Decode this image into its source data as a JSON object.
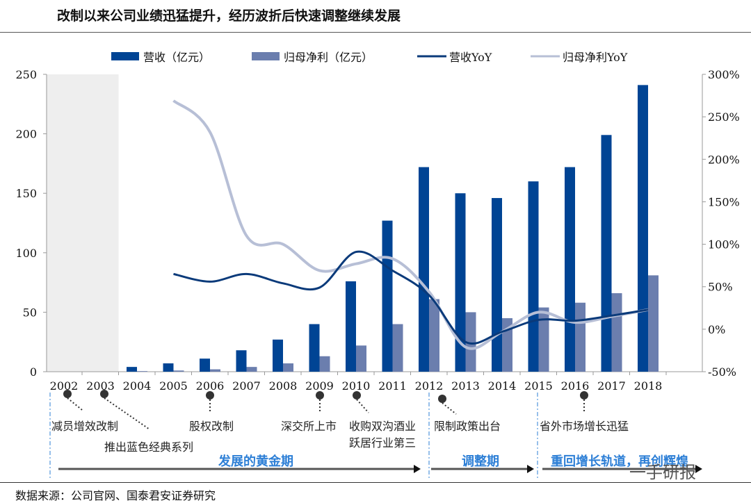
{
  "title": "改制以来公司业绩迅猛提升，经历波折后快速调整继续发展",
  "source": "数据来源：公司官网、国泰君安证券研究",
  "watermark": "一手研报",
  "colors": {
    "revenue": "#004494",
    "profit": "#6b7eae",
    "revenue_yoy": "#0a3a7a",
    "profit_yoy": "#b7bfd6",
    "phase": "#2d7fd6",
    "shade": "#eeeeee"
  },
  "chart_data": {
    "type": "bar+line",
    "categories": [
      "2002",
      "2003",
      "2004",
      "2005",
      "2006",
      "2007",
      "2008",
      "2009",
      "2010",
      "2011",
      "2012",
      "2013",
      "2014",
      "2015",
      "2016",
      "2017",
      "2018"
    ],
    "series": [
      {
        "name": "营收（亿元）",
        "type": "bar",
        "axis": "left",
        "values": [
          null,
          null,
          4,
          7,
          11,
          18,
          27,
          40,
          76,
          127,
          172,
          150,
          146,
          160,
          172,
          199,
          241
        ]
      },
      {
        "name": "归母净利（亿元）",
        "type": "bar",
        "axis": "left",
        "values": [
          null,
          null,
          0.5,
          1,
          2,
          4,
          7,
          13,
          22,
          40,
          61,
          50,
          45,
          54,
          58,
          66,
          81
        ]
      },
      {
        "name": "营收YoY",
        "type": "line",
        "axis": "right",
        "values": [
          null,
          null,
          null,
          65,
          56,
          65,
          54,
          49,
          91,
          69,
          40,
          -15,
          -3,
          11,
          10,
          16,
          23
        ]
      },
      {
        "name": "归母净利YoY",
        "type": "line",
        "axis": "right",
        "values": [
          null,
          null,
          null,
          269,
          232,
          110,
          100,
          69,
          77,
          83,
          44,
          -21,
          -3,
          20,
          8,
          15,
          23
        ]
      }
    ],
    "left_ticks": [
      "0",
      "50",
      "100",
      "150",
      "200",
      "250"
    ],
    "right_ticks": [
      "-50%",
      "0%",
      "50%",
      "100%",
      "150%",
      "200%",
      "250%",
      "300%"
    ],
    "ylim_left": [
      0,
      250
    ],
    "ylim_right": [
      -50,
      300
    ],
    "shaded_years": [
      "2002",
      "2003"
    ],
    "legend_placement": "top"
  },
  "annotations": [
    {
      "year": "2002",
      "text": "减员增效改制"
    },
    {
      "year": "2003",
      "text": "推出蓝色经典系列"
    },
    {
      "year": "2006",
      "text": "股权改制"
    },
    {
      "year": "2009",
      "text": "深交所上市"
    },
    {
      "year": "2010",
      "text": "收购双沟酒业"
    },
    {
      "year": "2010",
      "text": "跃居行业第三"
    },
    {
      "year": "2012",
      "text": "限制政策出台"
    },
    {
      "year": "2016",
      "text": "省外市场增长迅猛"
    }
  ],
  "phases": [
    "发展的黄金期",
    "调整期",
    "重回增长轨道，再创辉煌"
  ]
}
